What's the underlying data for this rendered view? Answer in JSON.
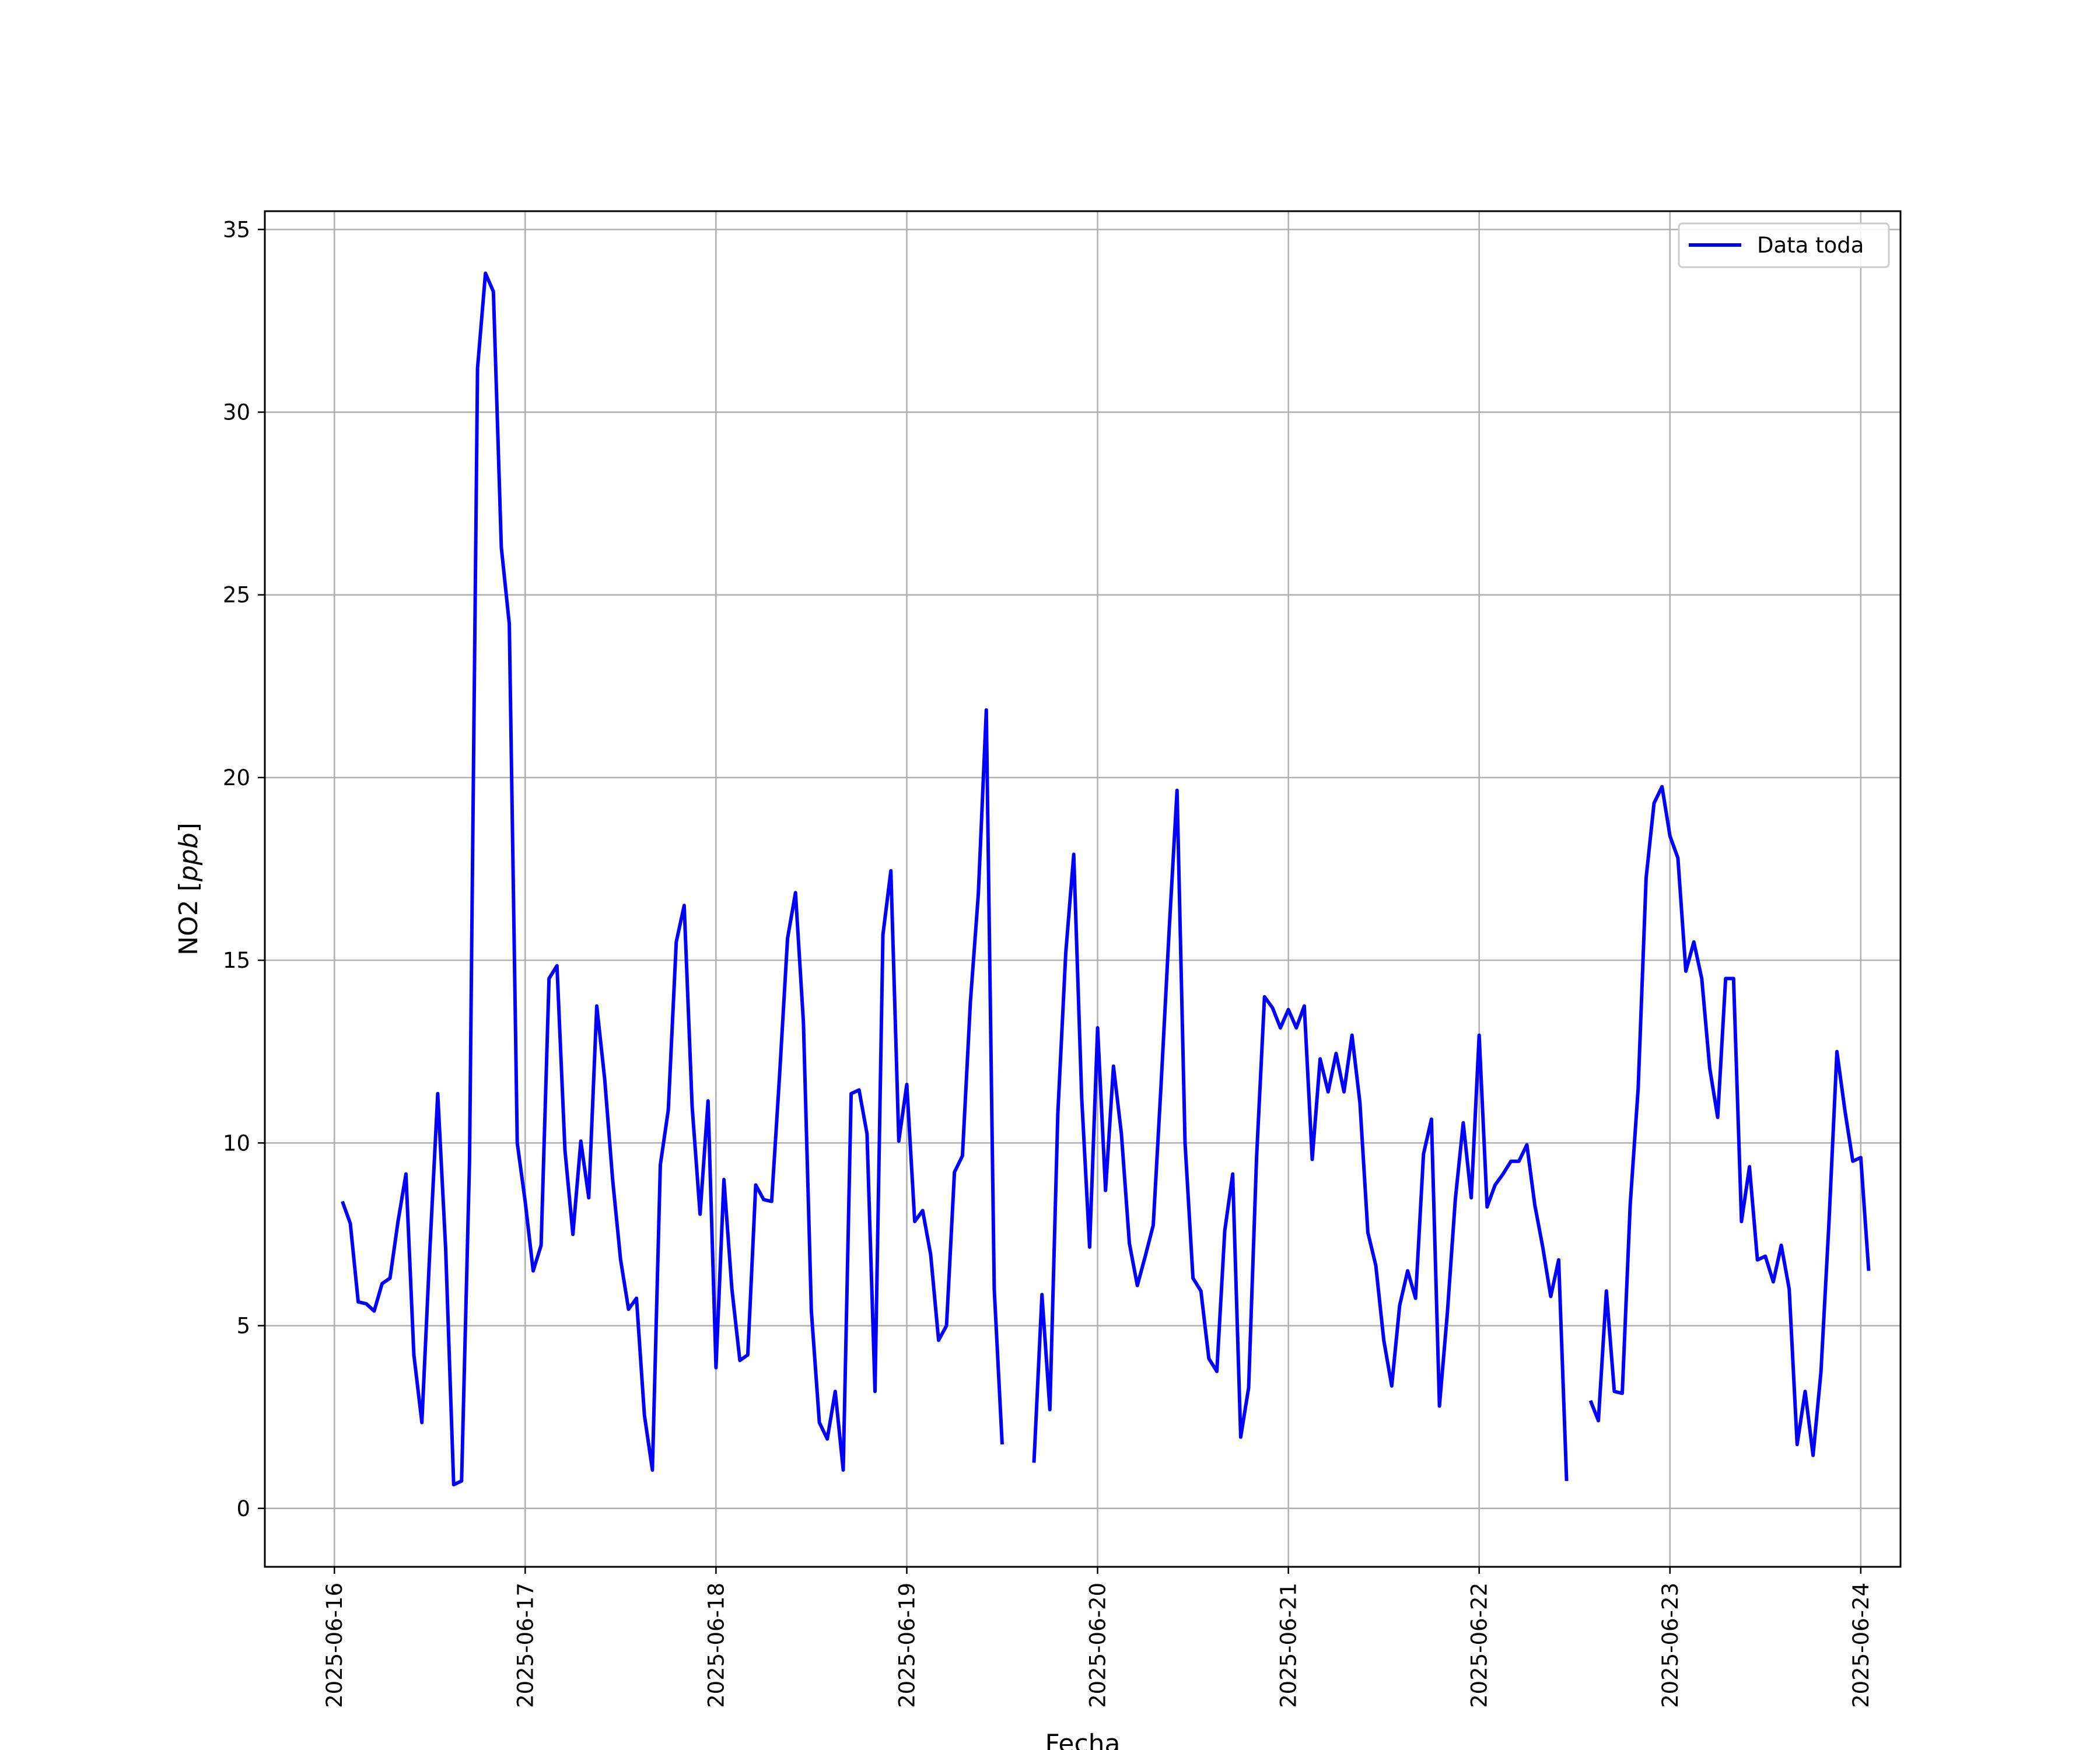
{
  "chart_data": {
    "type": "line",
    "xlabel": "Fecha",
    "ylabel_main": "NO2 [",
    "ylabel_unit": "ppb",
    "ylabel_close": "]",
    "ylim": [
      -1.6,
      35.5
    ],
    "xlim": [
      "2025-06-15 15:15",
      "2025-06-24 05:00"
    ],
    "x_ticks": [
      "2025-06-16",
      "2025-06-17",
      "2025-06-18",
      "2025-06-19",
      "2025-06-20",
      "2025-06-21",
      "2025-06-22",
      "2025-06-23",
      "2025-06-24"
    ],
    "y_ticks": [
      0,
      5,
      10,
      15,
      20,
      25,
      30,
      35
    ],
    "grid": true,
    "legend_position": "top-right",
    "colors": {
      "series": "#0000ff",
      "grid": "#b0b0b0",
      "axes": "#000000"
    },
    "series": [
      {
        "name": "Data toda",
        "x_start": "2025-06-16 01:00",
        "step_hours": 1,
        "y": [
          8.4,
          7.8,
          5.65,
          5.6,
          5.4,
          6.15,
          6.3,
          7.85,
          9.15,
          4.2,
          2.35,
          7.05,
          11.35,
          7.1,
          0.65,
          0.75,
          9.5,
          31.2,
          33.8,
          33.3,
          26.3,
          24.2,
          10.0,
          8.4,
          6.5,
          7.2,
          14.5,
          14.85,
          9.8,
          7.5,
          10.05,
          8.5,
          13.75,
          11.75,
          9.0,
          6.8,
          5.45,
          5.75,
          2.55,
          1.05,
          9.4,
          10.9,
          15.5,
          16.5,
          11.0,
          8.05,
          11.15,
          3.85,
          9.0,
          6.0,
          4.05,
          4.2,
          8.85,
          8.45,
          8.4,
          11.85,
          15.6,
          16.85,
          13.3,
          5.4,
          2.35,
          1.9,
          3.2,
          1.05,
          11.35,
          11.45,
          10.25,
          3.2,
          15.7,
          17.45,
          10.05,
          11.6,
          7.85,
          8.15,
          6.95,
          4.6,
          5.0,
          9.2,
          9.65,
          13.85,
          16.8,
          21.85,
          6.0,
          1.75,
          null,
          null,
          null,
          1.25,
          5.85,
          2.7,
          10.8,
          15.2,
          17.9,
          11.25,
          7.15,
          13.15,
          8.7,
          12.1,
          10.25,
          7.25,
          6.1,
          6.9,
          7.75,
          11.65,
          15.8,
          19.65,
          10.0,
          6.3,
          5.95,
          4.1,
          3.75,
          7.6,
          9.15,
          1.95,
          3.3,
          9.6,
          14.0,
          13.7,
          13.15,
          13.65,
          13.15,
          13.75,
          9.55,
          12.3,
          11.4,
          12.45,
          11.4,
          12.95,
          11.1,
          7.55,
          6.65,
          4.6,
          3.35,
          5.55,
          6.5,
          5.75,
          9.7,
          10.65,
          2.8,
          5.35,
          8.45,
          10.55,
          8.5,
          12.95,
          8.25,
          8.85,
          9.15,
          9.5,
          9.5,
          9.95,
          8.3,
          7.15,
          5.8,
          6.8,
          0.75,
          null,
          null,
          2.95,
          2.4,
          5.95,
          3.2,
          3.15,
          8.3,
          11.5,
          17.25,
          19.3,
          19.75,
          18.4,
          17.8,
          14.7,
          15.5,
          14.5,
          12.05,
          10.7,
          14.5,
          14.5,
          7.85,
          9.35,
          6.8,
          6.9,
          6.2,
          7.2,
          6.0,
          1.75,
          3.2,
          1.45,
          3.75,
          7.8,
          12.5,
          10.9,
          9.5,
          9.6,
          6.5
        ]
      }
    ]
  }
}
